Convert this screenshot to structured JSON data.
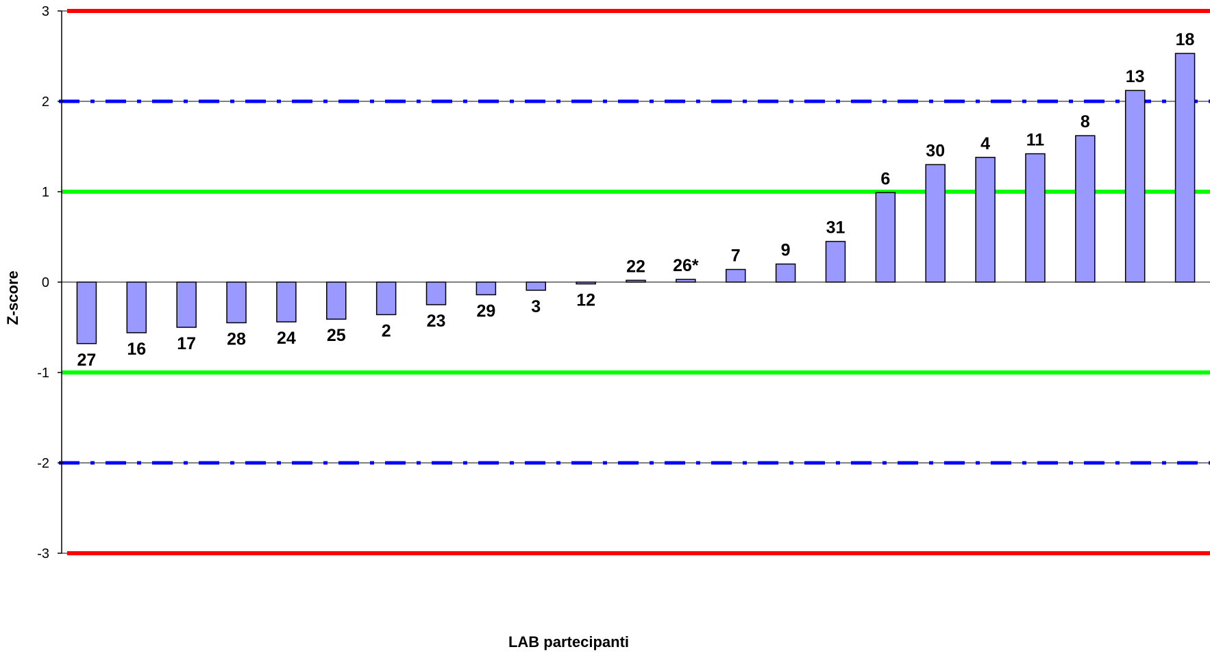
{
  "chart_data": {
    "type": "bar",
    "title": "",
    "xlabel": "LAB partecipanti",
    "ylabel": "Z-score",
    "ylim": [
      -3,
      3
    ],
    "yticks": [
      3,
      2,
      1,
      0,
      -1,
      -2,
      -3
    ],
    "categories": [
      "27",
      "16",
      "17",
      "28",
      "24",
      "25",
      "2",
      "23",
      "29",
      "3",
      "12",
      "22",
      "26*",
      "7",
      "9",
      "31",
      "6",
      "30",
      "4",
      "11",
      "8",
      "13",
      "18"
    ],
    "values": [
      -0.68,
      -0.56,
      -0.5,
      -0.45,
      -0.44,
      -0.41,
      -0.36,
      -0.25,
      -0.14,
      -0.09,
      -0.02,
      0.02,
      0.03,
      0.14,
      0.2,
      0.45,
      0.99,
      1.3,
      1.38,
      1.42,
      1.62,
      2.12,
      2.53
    ],
    "bar_color": "#9999ff",
    "reference_lines": [
      {
        "value": 3,
        "color": "#ff0000",
        "style": "solid"
      },
      {
        "value": 2,
        "color": "#0000ff",
        "style": "dash-dot"
      },
      {
        "value": 1,
        "color": "#00ff00",
        "style": "solid"
      },
      {
        "value": -1,
        "color": "#00ff00",
        "style": "solid"
      },
      {
        "value": -2,
        "color": "#0000ff",
        "style": "dash-dot"
      },
      {
        "value": -3,
        "color": "#ff0000",
        "style": "solid"
      }
    ],
    "grid": true,
    "legend": "none"
  }
}
